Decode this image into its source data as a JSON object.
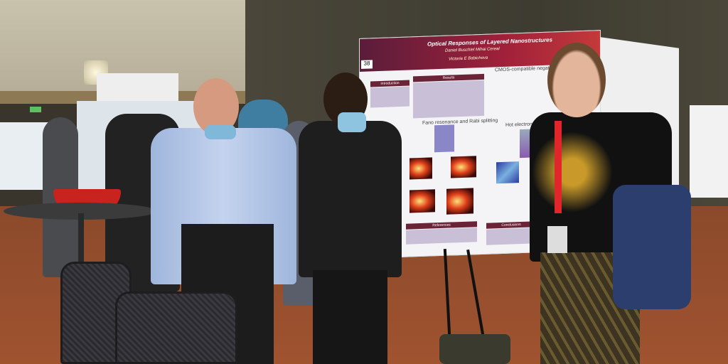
{
  "scene": "poster session",
  "poster": {
    "number": "38",
    "title": "Optical Responses of Layered Nanostructures",
    "authors": "Daniel Buschiel  Mihai Cereal",
    "author2": "Victoria E Babicheva",
    "sections": {
      "introduction": "Introduction",
      "results": "Results",
      "references": "References",
      "conclusions": "Conclusions"
    },
    "headings": [
      "CMOS-compatible negative index",
      "Fano resonance and Rabi splitting",
      "Hot electron generation in nano"
    ]
  },
  "colors": {
    "poster_header": "#8b1f3a",
    "carpet": "#9a4f2e",
    "bowl": "#c8231f",
    "lanyard": "#e0262a"
  }
}
